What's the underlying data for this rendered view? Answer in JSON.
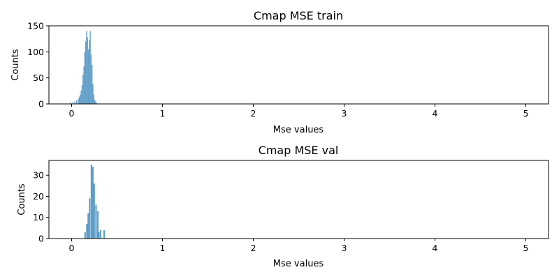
{
  "colors": {
    "bar": "#1f77b4",
    "axis": "#000000",
    "background": "#ffffff"
  },
  "chart_data": [
    {
      "type": "bar",
      "title": "Cmap MSE train",
      "xlabel": "Mse values",
      "ylabel": "Counts",
      "xlim": [
        -0.25,
        5.25
      ],
      "ylim": [
        0,
        150
      ],
      "xticks": [
        0,
        1,
        2,
        3,
        4,
        5
      ],
      "yticks": [
        0,
        50,
        100,
        150
      ],
      "grid": false,
      "bin_width": 0.01,
      "bins": [
        [
          -0.02,
          3
        ],
        [
          0.01,
          4
        ],
        [
          0.03,
          5
        ],
        [
          0.05,
          7
        ],
        [
          0.07,
          10
        ],
        [
          0.08,
          14
        ],
        [
          0.09,
          18
        ],
        [
          0.1,
          26
        ],
        [
          0.11,
          36
        ],
        [
          0.12,
          55
        ],
        [
          0.13,
          72
        ],
        [
          0.14,
          100
        ],
        [
          0.15,
          120
        ],
        [
          0.16,
          140
        ],
        [
          0.17,
          128
        ],
        [
          0.18,
          105
        ],
        [
          0.19,
          122
        ],
        [
          0.2,
          140
        ],
        [
          0.21,
          95
        ],
        [
          0.22,
          75
        ],
        [
          0.23,
          38
        ],
        [
          0.24,
          18
        ],
        [
          0.25,
          8
        ],
        [
          0.26,
          4
        ],
        [
          0.27,
          2
        ],
        [
          0.3,
          1
        ],
        [
          0.6,
          1
        ]
      ]
    },
    {
      "type": "bar",
      "title": "Cmap MSE val",
      "xlabel": "Mse values",
      "ylabel": "Counts",
      "xlim": [
        -0.25,
        5.25
      ],
      "ylim": [
        0,
        37
      ],
      "xticks": [
        0,
        1,
        2,
        3,
        4,
        5
      ],
      "yticks": [
        0,
        10,
        20,
        30
      ],
      "grid": false,
      "bin_width": 0.017,
      "bins": [
        [
          0.14,
          3
        ],
        [
          0.16,
          7
        ],
        [
          0.175,
          12
        ],
        [
          0.19,
          19
        ],
        [
          0.21,
          35
        ],
        [
          0.225,
          34
        ],
        [
          0.24,
          26
        ],
        [
          0.26,
          16
        ],
        [
          0.28,
          13
        ],
        [
          0.29,
          3
        ],
        [
          0.31,
          4
        ],
        [
          0.35,
          4
        ]
      ]
    }
  ]
}
